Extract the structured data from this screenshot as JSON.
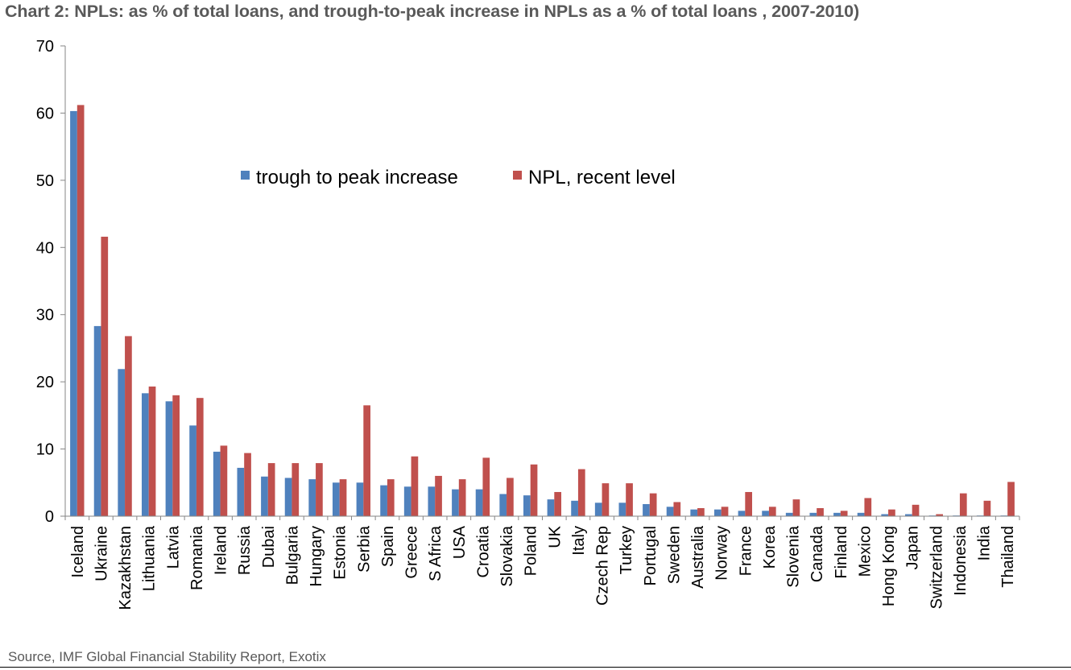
{
  "chart_data": {
    "type": "bar",
    "title": "Chart 2: NPLs: as % of total loans, and trough-to-peak increase in NPLs as a % of total loans , 2007-2010)",
    "source": "Source, IMF Global Financial Stability Report, Exotix",
    "xlabel": "",
    "ylabel": "",
    "ylim": [
      0,
      70
    ],
    "yticks": [
      "0",
      "10",
      "20",
      "30",
      "40",
      "50",
      "60",
      "70"
    ],
    "legend_position": "top-center",
    "colors": {
      "trough_to_peak": "#4f81bd",
      "npl_recent": "#c0504d"
    },
    "categories": [
      "Iceland",
      "Ukraine",
      "Kazakhstan",
      "Lithuania",
      "Latvia",
      "Romania",
      "Ireland",
      "Russia",
      "Dubai",
      "Bulgaria",
      "Hungary",
      "Estonia",
      "Serbia",
      "Spain",
      "Greece",
      "S Africa",
      "USA",
      "Croatia",
      "Slovakia",
      "Poland",
      "UK",
      "Italy",
      "Czech Rep",
      "Turkey",
      "Portugal",
      "Sweden",
      "Australia",
      "Norway",
      "France",
      "Korea",
      "Slovenia",
      "Canada",
      "Finland",
      "Mexico",
      "Hong Kong",
      "Japan",
      "Switzerland",
      "Indonesia",
      "India",
      "Thailand"
    ],
    "series": [
      {
        "name": "trough to peak increase",
        "values": [
          60.3,
          28.3,
          21.9,
          18.3,
          17.1,
          13.5,
          9.6,
          7.2,
          5.9,
          5.7,
          5.5,
          5.0,
          5.0,
          4.6,
          4.4,
          4.4,
          4.0,
          4.0,
          3.3,
          3.1,
          2.5,
          2.3,
          2.0,
          2.0,
          1.8,
          1.4,
          1.0,
          1.0,
          0.8,
          0.8,
          0.5,
          0.5,
          0.5,
          0.5,
          0.3,
          0.3,
          0.1,
          0.1,
          0.1,
          0.1
        ]
      },
      {
        "name": "NPL, recent level",
        "values": [
          61.2,
          41.6,
          26.8,
          19.3,
          18.0,
          17.6,
          10.5,
          9.4,
          7.9,
          7.9,
          7.9,
          5.5,
          16.5,
          5.5,
          8.9,
          6.0,
          5.5,
          8.7,
          5.7,
          7.7,
          3.6,
          7.0,
          4.9,
          4.9,
          3.4,
          2.1,
          1.2,
          1.4,
          3.6,
          1.4,
          2.5,
          1.2,
          0.8,
          2.7,
          1.0,
          1.7,
          0.3,
          3.4,
          2.3,
          5.1
        ]
      }
    ]
  }
}
